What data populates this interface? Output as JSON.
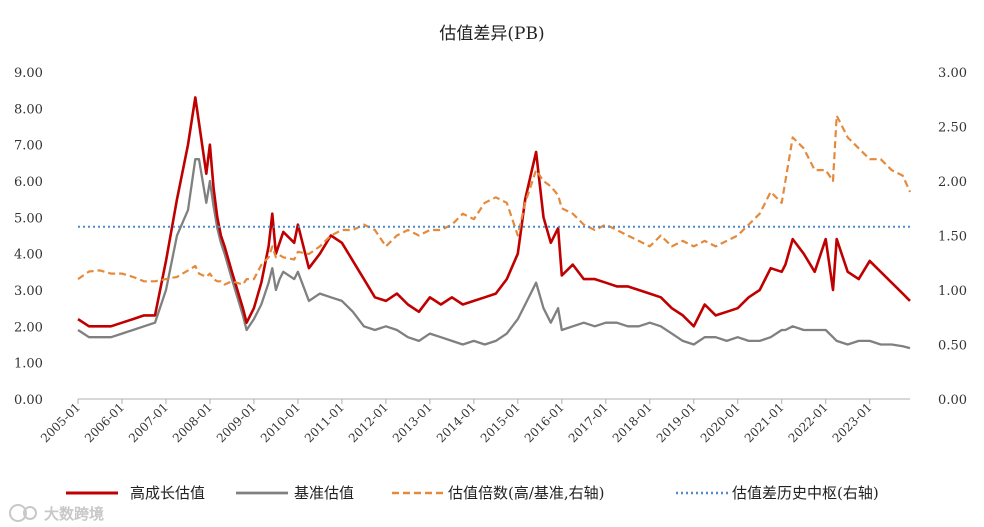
{
  "chart_data": {
    "type": "line",
    "title": "估值差异(PB)",
    "xlabel": "",
    "ylabel_left": "",
    "ylabel_right": "",
    "ylim_left": [
      0,
      9
    ],
    "ylim_right": [
      0,
      3
    ],
    "left_ticks": [
      "0.00",
      "1.00",
      "2.00",
      "3.00",
      "4.00",
      "5.00",
      "6.00",
      "7.00",
      "8.00",
      "9.00"
    ],
    "right_ticks": [
      "0.00",
      "0.50",
      "1.00",
      "1.50",
      "2.00",
      "2.50",
      "3.00"
    ],
    "x_ticks": [
      "2005-01",
      "2006-01",
      "2007-01",
      "2008-01",
      "2009-01",
      "2010-01",
      "2011-01",
      "2012-01",
      "2013-01",
      "2014-01",
      "2015-01",
      "2016-01",
      "2017-01",
      "2018-01",
      "2019-01",
      "2020-01",
      "2021-01",
      "2022-01",
      "2023-01"
    ],
    "x_start": "2005-01",
    "x_end": "2023-12",
    "grid": false,
    "legend_position": "bottom",
    "series": [
      {
        "name": "高成长估值",
        "axis": "left",
        "color": "#c00000",
        "style": "solid",
        "x": [
          "2005-01",
          "2005-04",
          "2005-07",
          "2005-10",
          "2006-01",
          "2006-04",
          "2006-07",
          "2006-10",
          "2007-01",
          "2007-04",
          "2007-07",
          "2007-09",
          "2007-10",
          "2007-12",
          "2008-01",
          "2008-02",
          "2008-03",
          "2008-04",
          "2008-05",
          "2008-07",
          "2008-10",
          "2008-11",
          "2009-01",
          "2009-03",
          "2009-05",
          "2009-06",
          "2009-07",
          "2009-08",
          "2009-09",
          "2009-12",
          "2010-01",
          "2010-04",
          "2010-07",
          "2010-10",
          "2011-01",
          "2011-04",
          "2011-07",
          "2011-10",
          "2012-01",
          "2012-04",
          "2012-07",
          "2012-10",
          "2013-01",
          "2013-04",
          "2013-07",
          "2013-10",
          "2014-01",
          "2014-04",
          "2014-07",
          "2014-10",
          "2015-01",
          "2015-03",
          "2015-06",
          "2015-08",
          "2015-10",
          "2015-12",
          "2016-01",
          "2016-04",
          "2016-07",
          "2016-10",
          "2017-01",
          "2017-04",
          "2017-07",
          "2017-10",
          "2018-01",
          "2018-04",
          "2018-07",
          "2018-10",
          "2019-01",
          "2019-04",
          "2019-07",
          "2019-10",
          "2020-01",
          "2020-04",
          "2020-07",
          "2020-10",
          "2021-01",
          "2021-02",
          "2021-04",
          "2021-07",
          "2021-10",
          "2022-01",
          "2022-03",
          "2022-04",
          "2022-07",
          "2022-10",
          "2023-01",
          "2023-04",
          "2023-07",
          "2023-10",
          "2023-12"
        ],
        "values": [
          2.2,
          2.0,
          2.0,
          2.0,
          2.1,
          2.2,
          2.3,
          2.3,
          3.8,
          5.5,
          7.0,
          8.3,
          7.6,
          6.2,
          7.0,
          5.8,
          5.0,
          4.5,
          4.2,
          3.5,
          2.5,
          2.1,
          2.5,
          3.2,
          4.2,
          5.1,
          4.0,
          4.3,
          4.6,
          4.3,
          4.8,
          3.6,
          4.0,
          4.5,
          4.3,
          3.8,
          3.3,
          2.8,
          2.7,
          2.9,
          2.6,
          2.4,
          2.8,
          2.6,
          2.8,
          2.6,
          2.7,
          2.8,
          2.9,
          3.3,
          4.0,
          5.5,
          6.8,
          5.0,
          4.3,
          4.7,
          3.4,
          3.7,
          3.3,
          3.3,
          3.2,
          3.1,
          3.1,
          3.0,
          2.9,
          2.8,
          2.5,
          2.3,
          2.0,
          2.6,
          2.3,
          2.4,
          2.5,
          2.8,
          3.0,
          3.6,
          3.5,
          3.7,
          4.4,
          4.0,
          3.5,
          4.4,
          3.0,
          4.4,
          3.5,
          3.3,
          3.8,
          3.5,
          3.2,
          2.9,
          2.7
        ]
      },
      {
        "name": "基准估值",
        "axis": "left",
        "color": "#808080",
        "style": "solid",
        "x": [
          "2005-01",
          "2005-04",
          "2005-07",
          "2005-10",
          "2006-01",
          "2006-04",
          "2006-07",
          "2006-10",
          "2007-01",
          "2007-04",
          "2007-07",
          "2007-09",
          "2007-10",
          "2007-12",
          "2008-01",
          "2008-02",
          "2008-03",
          "2008-04",
          "2008-05",
          "2008-07",
          "2008-10",
          "2008-11",
          "2009-01",
          "2009-03",
          "2009-05",
          "2009-06",
          "2009-07",
          "2009-08",
          "2009-09",
          "2009-12",
          "2010-01",
          "2010-04",
          "2010-07",
          "2010-10",
          "2011-01",
          "2011-04",
          "2011-07",
          "2011-10",
          "2012-01",
          "2012-04",
          "2012-07",
          "2012-10",
          "2013-01",
          "2013-04",
          "2013-07",
          "2013-10",
          "2014-01",
          "2014-04",
          "2014-07",
          "2014-10",
          "2015-01",
          "2015-03",
          "2015-06",
          "2015-08",
          "2015-10",
          "2015-12",
          "2016-01",
          "2016-04",
          "2016-07",
          "2016-10",
          "2017-01",
          "2017-04",
          "2017-07",
          "2017-10",
          "2018-01",
          "2018-04",
          "2018-07",
          "2018-10",
          "2019-01",
          "2019-04",
          "2019-07",
          "2019-10",
          "2020-01",
          "2020-04",
          "2020-07",
          "2020-10",
          "2021-01",
          "2021-02",
          "2021-04",
          "2021-07",
          "2021-10",
          "2022-01",
          "2022-03",
          "2022-04",
          "2022-07",
          "2022-10",
          "2023-01",
          "2023-04",
          "2023-07",
          "2023-10",
          "2023-12"
        ],
        "values": [
          1.9,
          1.7,
          1.7,
          1.7,
          1.8,
          1.9,
          2.0,
          2.1,
          3.0,
          4.5,
          5.2,
          6.6,
          6.6,
          5.4,
          6.0,
          5.3,
          4.7,
          4.3,
          4.0,
          3.3,
          2.3,
          1.9,
          2.2,
          2.6,
          3.2,
          3.6,
          3.0,
          3.3,
          3.5,
          3.3,
          3.5,
          2.7,
          2.9,
          2.8,
          2.7,
          2.4,
          2.0,
          1.9,
          2.0,
          1.9,
          1.7,
          1.6,
          1.8,
          1.7,
          1.6,
          1.5,
          1.6,
          1.5,
          1.6,
          1.8,
          2.2,
          2.6,
          3.2,
          2.5,
          2.1,
          2.5,
          1.9,
          2.0,
          2.1,
          2.0,
          2.1,
          2.1,
          2.0,
          2.0,
          2.1,
          2.0,
          1.8,
          1.6,
          1.5,
          1.7,
          1.7,
          1.6,
          1.7,
          1.6,
          1.6,
          1.7,
          1.9,
          1.9,
          2.0,
          1.9,
          1.9,
          1.9,
          1.7,
          1.6,
          1.5,
          1.6,
          1.6,
          1.5,
          1.5,
          1.45,
          1.4
        ]
      },
      {
        "name": "估值倍数(高/基准,右轴)",
        "axis": "right",
        "color": "#e58a3c",
        "style": "dashed",
        "x": [
          "2005-01",
          "2005-04",
          "2005-07",
          "2005-10",
          "2006-01",
          "2006-04",
          "2006-07",
          "2006-10",
          "2007-01",
          "2007-04",
          "2007-07",
          "2007-09",
          "2007-10",
          "2007-12",
          "2008-01",
          "2008-02",
          "2008-03",
          "2008-04",
          "2008-05",
          "2008-07",
          "2008-10",
          "2008-11",
          "2009-01",
          "2009-03",
          "2009-05",
          "2009-06",
          "2009-07",
          "2009-08",
          "2009-09",
          "2009-12",
          "2010-01",
          "2010-04",
          "2010-07",
          "2010-10",
          "2011-01",
          "2011-04",
          "2011-07",
          "2011-10",
          "2012-01",
          "2012-04",
          "2012-07",
          "2012-10",
          "2013-01",
          "2013-04",
          "2013-07",
          "2013-10",
          "2014-01",
          "2014-04",
          "2014-07",
          "2014-10",
          "2015-01",
          "2015-03",
          "2015-06",
          "2015-08",
          "2015-10",
          "2015-12",
          "2016-01",
          "2016-04",
          "2016-07",
          "2016-10",
          "2017-01",
          "2017-04",
          "2017-07",
          "2017-10",
          "2018-01",
          "2018-04",
          "2018-07",
          "2018-10",
          "2019-01",
          "2019-04",
          "2019-07",
          "2019-10",
          "2020-01",
          "2020-04",
          "2020-07",
          "2020-10",
          "2021-01",
          "2021-02",
          "2021-04",
          "2021-07",
          "2021-10",
          "2022-01",
          "2022-03",
          "2022-04",
          "2022-07",
          "2022-10",
          "2023-01",
          "2023-04",
          "2023-07",
          "2023-10",
          "2023-12"
        ],
        "values": [
          1.1,
          1.17,
          1.18,
          1.15,
          1.15,
          1.12,
          1.08,
          1.08,
          1.1,
          1.12,
          1.18,
          1.22,
          1.15,
          1.12,
          1.15,
          1.1,
          1.08,
          1.08,
          1.05,
          1.08,
          1.05,
          1.1,
          1.1,
          1.23,
          1.3,
          1.4,
          1.3,
          1.32,
          1.3,
          1.28,
          1.35,
          1.33,
          1.4,
          1.5,
          1.55,
          1.55,
          1.6,
          1.55,
          1.4,
          1.5,
          1.55,
          1.5,
          1.55,
          1.55,
          1.6,
          1.7,
          1.65,
          1.8,
          1.85,
          1.8,
          1.5,
          1.8,
          2.1,
          2.0,
          1.95,
          1.87,
          1.75,
          1.7,
          1.6,
          1.55,
          1.6,
          1.55,
          1.5,
          1.45,
          1.4,
          1.5,
          1.4,
          1.45,
          1.4,
          1.45,
          1.4,
          1.45,
          1.5,
          1.6,
          1.7,
          1.9,
          1.8,
          2.0,
          2.4,
          2.3,
          2.1,
          2.1,
          2.0,
          2.6,
          2.4,
          2.3,
          2.2,
          2.2,
          2.1,
          2.05,
          1.9
        ]
      },
      {
        "name": "估值差历史中枢(右轴)",
        "axis": "right",
        "color": "#4f8bc9",
        "style": "dotted",
        "x": [
          "2005-01",
          "2023-12"
        ],
        "values": [
          1.58,
          1.58
        ]
      }
    ]
  },
  "watermark": "大数跨境"
}
